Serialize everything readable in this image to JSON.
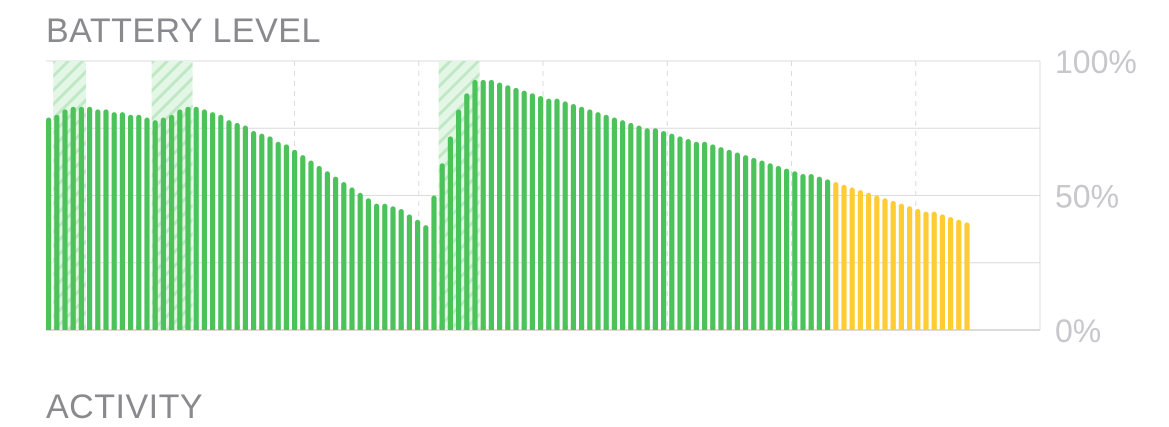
{
  "sections": {
    "battery_title": "BATTERY LEVEL",
    "activity_title": "ACTIVITY"
  },
  "colors": {
    "normal": "#4cc35a",
    "low_power": "#ffcc33",
    "charging_hatch": "#4cc35a",
    "grid": "#dcdcdc",
    "tick_text": "#c7c7cc"
  },
  "chart_data": {
    "type": "bar",
    "title": "BATTERY LEVEL",
    "xlabel": "",
    "ylabel": "",
    "ylim": [
      0,
      100
    ],
    "yticks": [
      {
        "value": 100,
        "label": "100%"
      },
      {
        "value": 50,
        "label": "50%"
      },
      {
        "value": 0,
        "label": "0%"
      }
    ],
    "grid": true,
    "values": [
      79,
      80,
      82,
      83,
      83,
      83,
      82,
      82,
      81,
      81,
      80,
      80,
      79,
      78,
      79,
      80,
      82,
      83,
      83,
      82,
      81,
      80,
      78,
      77,
      76,
      74,
      73,
      72,
      70,
      69,
      67,
      65,
      63,
      61,
      59,
      57,
      55,
      53,
      51,
      49,
      47,
      47,
      46,
      45,
      43,
      41,
      39,
      50,
      62,
      72,
      82,
      88,
      93,
      93,
      93,
      92,
      91,
      90,
      89,
      88,
      87,
      86,
      86,
      85,
      84,
      83,
      82,
      81,
      80,
      79,
      78,
      77,
      76,
      75,
      75,
      74,
      73,
      72,
      71,
      70,
      70,
      69,
      68,
      67,
      66,
      65,
      64,
      63,
      62,
      61,
      60,
      59,
      58,
      58,
      57,
      56,
      55,
      54,
      53,
      52,
      51,
      50,
      49,
      48,
      47,
      46,
      45,
      44,
      44,
      43,
      42,
      41,
      40
    ],
    "low_power_from_index": 96,
    "charging_ranges": [
      [
        1,
        4
      ],
      [
        13,
        17
      ],
      [
        48,
        52
      ]
    ]
  }
}
